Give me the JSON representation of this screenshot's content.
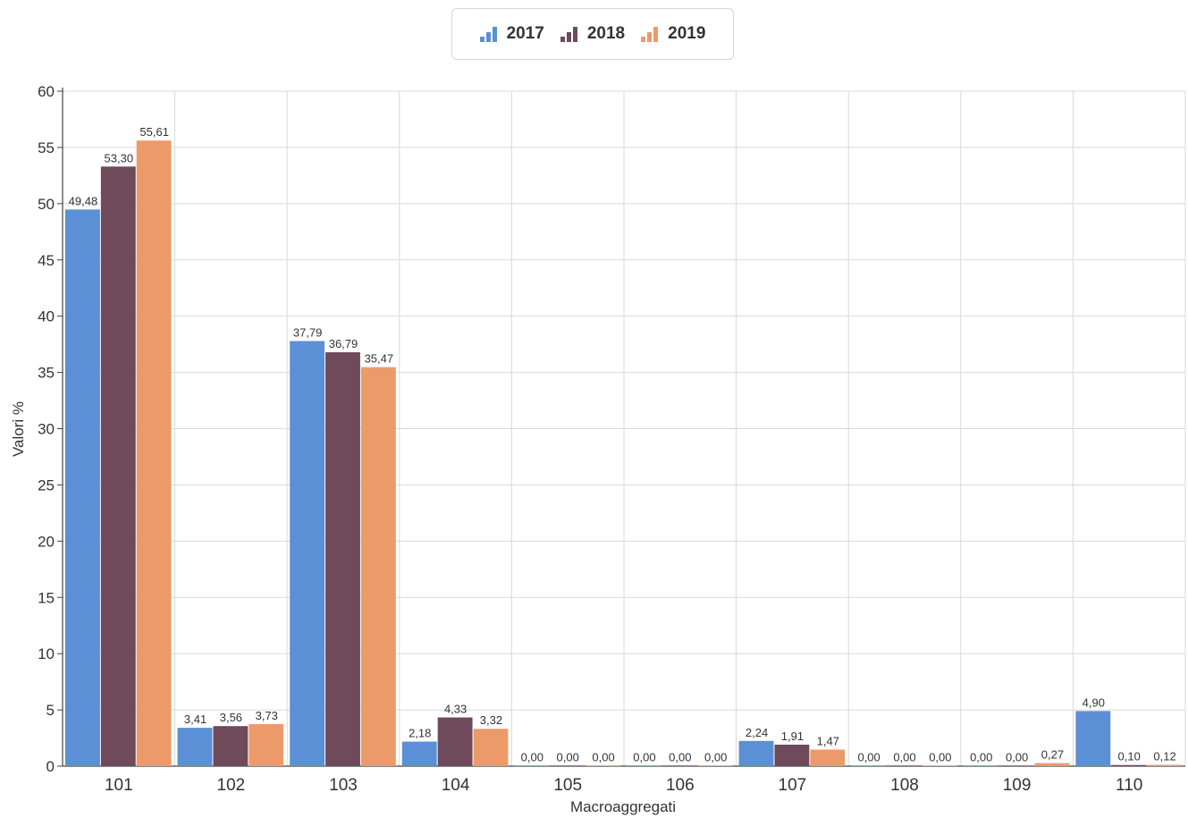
{
  "chart_data": {
    "type": "bar",
    "xlabel": "Macroaggregati",
    "ylabel": "Valori %",
    "ylim": [
      0,
      60
    ],
    "yticks": [
      0,
      5,
      10,
      15,
      20,
      25,
      30,
      35,
      40,
      45,
      50,
      55,
      60
    ],
    "grid": true,
    "legend_position": "top-center",
    "categories": [
      "101",
      "102",
      "103",
      "104",
      "105",
      "106",
      "107",
      "108",
      "109",
      "110"
    ],
    "series": [
      {
        "name": "2017",
        "color": "#5b8fd6",
        "values": [
          49.48,
          3.41,
          37.79,
          2.18,
          0.0,
          0.0,
          2.24,
          0.0,
          0.0,
          4.9
        ],
        "labels": [
          "49,48",
          "3,41",
          "37,79",
          "2,18",
          "0,00",
          "0,00",
          "2,24",
          "0,00",
          "0,00",
          "4,90"
        ]
      },
      {
        "name": "2018",
        "color": "#6e4a5a",
        "values": [
          53.3,
          3.56,
          36.79,
          4.33,
          0.0,
          0.0,
          1.91,
          0.0,
          0.0,
          0.1
        ],
        "labels": [
          "53,30",
          "3,56",
          "36,79",
          "4,33",
          "0,00",
          "0,00",
          "1,91",
          "0,00",
          "0,00",
          "0,10"
        ]
      },
      {
        "name": "2019",
        "color": "#ec9a6a",
        "values": [
          55.61,
          3.73,
          35.47,
          3.32,
          0.0,
          0.0,
          1.47,
          0.0,
          0.27,
          0.12
        ],
        "labels": [
          "55,61",
          "3,73",
          "35,47",
          "3,32",
          "0,00",
          "0,00",
          "1,47",
          "0,00",
          "0,27",
          "0,12"
        ]
      }
    ]
  }
}
